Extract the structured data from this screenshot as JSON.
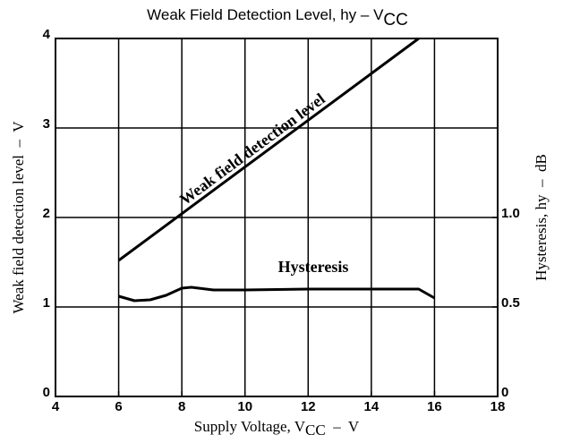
{
  "chart_data": {
    "type": "line",
    "title": {
      "text": "Weak Field Detection Level, hy  –  V",
      "sub": "CC"
    },
    "xlabel": {
      "text": "Supply Voltage, V",
      "sub": "CC",
      "tail": "  –  V"
    },
    "ylabel": "Weak field detection level  –  V",
    "y2label": "Hysteresis, hy  –  dB",
    "xlim": [
      4,
      18
    ],
    "xticks": [
      4,
      6,
      8,
      10,
      12,
      14,
      16,
      18
    ],
    "ylim": [
      0,
      4
    ],
    "yticks": [
      0,
      1,
      2,
      3,
      4
    ],
    "y2lim": [
      0,
      2
    ],
    "y2ticks": [
      0,
      0.5,
      {
        "value": 1,
        "label": "1.0"
      }
    ],
    "grid": true,
    "series": [
      {
        "name": "Weak field detection level",
        "color": "#000000",
        "x": [
          6,
          15.5
        ],
        "values": [
          1.52,
          4.0
        ]
      },
      {
        "name": "Hysteresis",
        "color": "#000000",
        "axis": "y2",
        "x": [
          6,
          6.5,
          7,
          7.5,
          8,
          8.3,
          9,
          10,
          12,
          14,
          15.5,
          16
        ],
        "values": [
          0.56,
          0.535,
          0.54,
          0.565,
          0.605,
          0.61,
          0.595,
          0.595,
          0.6,
          0.6,
          0.6,
          0.55
        ]
      }
    ]
  }
}
